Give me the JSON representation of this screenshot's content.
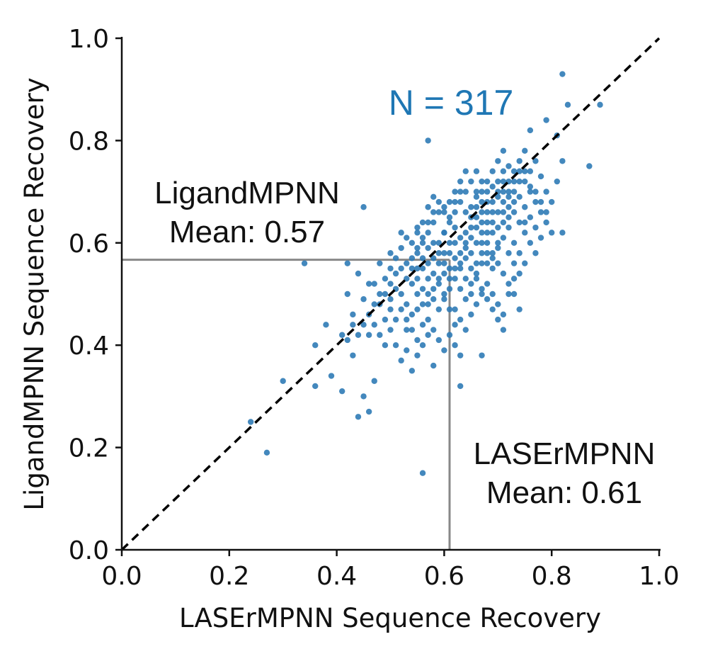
{
  "chart_data": {
    "type": "scatter",
    "xlabel": "LASErMPNN Sequence Recovery",
    "ylabel": "LigandMPNN Sequence Recovery",
    "xlim": [
      0,
      1
    ],
    "ylim": [
      0,
      1
    ],
    "x_ticks": [
      "0.0",
      "0.2",
      "0.4",
      "0.6",
      "0.8",
      "1.0"
    ],
    "y_ticks": [
      "0.0",
      "0.2",
      "0.4",
      "0.6",
      "0.8",
      "1.0"
    ],
    "grid": false,
    "point_color": "#2f7bb6",
    "n_label": "N = 317",
    "n_label_color": "#1f77b4",
    "diagonal": {
      "style": "dashed",
      "color": "#000000",
      "from": [
        0,
        0
      ],
      "to": [
        1,
        1
      ]
    },
    "ref_lines_color": "#888888",
    "ligand_mean": {
      "value": 0.567,
      "label_line1": "LigandMPNN",
      "label_line2": "Mean: 0.57"
    },
    "laser_mean": {
      "value": 0.61,
      "label_line1": "LASErMPNN",
      "label_line2": "Mean: 0.61"
    },
    "points": [
      [
        0.24,
        0.25
      ],
      [
        0.27,
        0.19
      ],
      [
        0.3,
        0.33
      ],
      [
        0.34,
        0.56
      ],
      [
        0.36,
        0.4
      ],
      [
        0.36,
        0.32
      ],
      [
        0.38,
        0.44
      ],
      [
        0.39,
        0.34
      ],
      [
        0.41,
        0.31
      ],
      [
        0.42,
        0.56
      ],
      [
        0.42,
        0.5
      ],
      [
        0.43,
        0.46
      ],
      [
        0.43,
        0.38
      ],
      [
        0.44,
        0.26
      ],
      [
        0.45,
        0.67
      ],
      [
        0.45,
        0.3
      ],
      [
        0.46,
        0.27
      ],
      [
        0.46,
        0.52
      ],
      [
        0.47,
        0.33
      ],
      [
        0.47,
        0.48
      ],
      [
        0.56,
        0.15
      ],
      [
        0.57,
        0.8
      ],
      [
        0.82,
        0.93
      ],
      [
        0.83,
        0.87
      ],
      [
        0.89,
        0.87
      ],
      [
        0.87,
        0.75
      ],
      [
        0.82,
        0.62
      ],
      [
        0.81,
        0.81
      ],
      [
        0.79,
        0.84
      ],
      [
        0.76,
        0.82
      ],
      [
        0.63,
        0.32
      ],
      [
        0.67,
        0.38
      ],
      [
        0.71,
        0.43
      ],
      [
        0.58,
        0.36
      ],
      [
        0.44,
        0.54
      ],
      [
        0.48,
        0.56
      ],
      [
        0.5,
        0.58
      ],
      [
        0.52,
        0.62
      ],
      [
        0.55,
        0.63
      ],
      [
        0.57,
        0.62
      ],
      [
        0.49,
        0.45
      ],
      [
        0.5,
        0.47
      ],
      [
        0.51,
        0.4
      ],
      [
        0.53,
        0.43
      ],
      [
        0.54,
        0.46
      ],
      [
        0.55,
        0.41
      ],
      [
        0.56,
        0.44
      ],
      [
        0.57,
        0.48
      ],
      [
        0.58,
        0.51
      ],
      [
        0.59,
        0.53
      ],
      [
        0.6,
        0.54
      ],
      [
        0.61,
        0.58
      ],
      [
        0.62,
        0.6
      ],
      [
        0.63,
        0.56
      ],
      [
        0.64,
        0.59
      ],
      [
        0.65,
        0.61
      ],
      [
        0.66,
        0.63
      ],
      [
        0.67,
        0.6
      ],
      [
        0.68,
        0.62
      ],
      [
        0.69,
        0.64
      ],
      [
        0.7,
        0.66
      ],
      [
        0.71,
        0.68
      ],
      [
        0.72,
        0.65
      ],
      [
        0.73,
        0.7
      ],
      [
        0.74,
        0.72
      ],
      [
        0.75,
        0.74
      ],
      [
        0.76,
        0.71
      ],
      [
        0.77,
        0.76
      ],
      [
        0.78,
        0.73
      ],
      [
        0.79,
        0.7
      ],
      [
        0.6,
        0.62
      ],
      [
        0.61,
        0.64
      ],
      [
        0.62,
        0.66
      ],
      [
        0.63,
        0.68
      ],
      [
        0.64,
        0.7
      ],
      [
        0.65,
        0.67
      ],
      [
        0.66,
        0.69
      ],
      [
        0.67,
        0.72
      ],
      [
        0.68,
        0.7
      ],
      [
        0.69,
        0.74
      ],
      [
        0.7,
        0.76
      ],
      [
        0.71,
        0.78
      ],
      [
        0.72,
        0.75
      ],
      [
        0.73,
        0.72
      ],
      [
        0.74,
        0.69
      ],
      [
        0.75,
        0.67
      ],
      [
        0.76,
        0.65
      ],
      [
        0.77,
        0.63
      ],
      [
        0.78,
        0.61
      ],
      [
        0.79,
        0.66
      ],
      [
        0.8,
        0.68
      ],
      [
        0.81,
        0.72
      ],
      [
        0.82,
        0.76
      ],
      [
        0.55,
        0.55
      ],
      [
        0.56,
        0.57
      ],
      [
        0.57,
        0.59
      ],
      [
        0.58,
        0.6
      ],
      [
        0.59,
        0.56
      ],
      [
        0.6,
        0.58
      ],
      [
        0.61,
        0.55
      ],
      [
        0.62,
        0.53
      ],
      [
        0.63,
        0.51
      ],
      [
        0.64,
        0.49
      ],
      [
        0.65,
        0.52
      ],
      [
        0.66,
        0.54
      ],
      [
        0.67,
        0.56
      ],
      [
        0.68,
        0.58
      ],
      [
        0.69,
        0.57
      ],
      [
        0.7,
        0.59
      ],
      [
        0.71,
        0.61
      ],
      [
        0.72,
        0.63
      ],
      [
        0.73,
        0.6
      ],
      [
        0.74,
        0.58
      ],
      [
        0.75,
        0.62
      ],
      [
        0.76,
        0.6
      ],
      [
        0.77,
        0.58
      ],
      [
        0.5,
        0.52
      ],
      [
        0.51,
        0.54
      ],
      [
        0.52,
        0.5
      ],
      [
        0.53,
        0.48
      ],
      [
        0.54,
        0.52
      ],
      [
        0.55,
        0.5
      ],
      [
        0.56,
        0.48
      ],
      [
        0.57,
        0.45
      ],
      [
        0.58,
        0.43
      ],
      [
        0.59,
        0.47
      ],
      [
        0.6,
        0.49
      ],
      [
        0.61,
        0.51
      ],
      [
        0.62,
        0.47
      ],
      [
        0.63,
        0.45
      ],
      [
        0.64,
        0.43
      ],
      [
        0.65,
        0.46
      ],
      [
        0.66,
        0.48
      ],
      [
        0.67,
        0.5
      ],
      [
        0.68,
        0.52
      ],
      [
        0.69,
        0.5
      ],
      [
        0.7,
        0.48
      ],
      [
        0.71,
        0.46
      ],
      [
        0.72,
        0.5
      ],
      [
        0.73,
        0.53
      ],
      [
        0.74,
        0.47
      ],
      [
        0.48,
        0.5
      ],
      [
        0.49,
        0.53
      ],
      [
        0.5,
        0.55
      ],
      [
        0.51,
        0.57
      ],
      [
        0.52,
        0.59
      ],
      [
        0.53,
        0.61
      ],
      [
        0.54,
        0.6
      ],
      [
        0.55,
        0.58
      ],
      [
        0.56,
        0.6
      ],
      [
        0.57,
        0.56
      ],
      [
        0.58,
        0.54
      ],
      [
        0.59,
        0.52
      ],
      [
        0.6,
        0.5
      ],
      [
        0.61,
        0.47
      ],
      [
        0.62,
        0.44
      ],
      [
        0.47,
        0.44
      ],
      [
        0.48,
        0.42
      ],
      [
        0.49,
        0.4
      ],
      [
        0.5,
        0.43
      ],
      [
        0.51,
        0.45
      ],
      [
        0.52,
        0.47
      ],
      [
        0.53,
        0.45
      ],
      [
        0.54,
        0.43
      ],
      [
        0.55,
        0.47
      ],
      [
        0.56,
        0.51
      ],
      [
        0.57,
        0.53
      ],
      [
        0.58,
        0.49
      ],
      [
        0.59,
        0.41
      ],
      [
        0.6,
        0.39
      ],
      [
        0.61,
        0.42
      ],
      [
        0.62,
        0.4
      ],
      [
        0.63,
        0.38
      ],
      [
        0.44,
        0.42
      ],
      [
        0.45,
        0.44
      ],
      [
        0.46,
        0.46
      ],
      [
        0.47,
        0.52
      ],
      [
        0.48,
        0.48
      ],
      [
        0.49,
        0.5
      ],
      [
        0.46,
        0.42
      ],
      [
        0.45,
        0.49
      ],
      [
        0.43,
        0.44
      ],
      [
        0.42,
        0.41
      ],
      [
        0.41,
        0.42
      ],
      [
        0.52,
        0.37
      ],
      [
        0.53,
        0.39
      ],
      [
        0.54,
        0.35
      ],
      [
        0.55,
        0.38
      ],
      [
        0.56,
        0.4
      ],
      [
        0.57,
        0.42
      ],
      [
        0.66,
        0.74
      ],
      [
        0.67,
        0.7
      ],
      [
        0.68,
        0.68
      ],
      [
        0.69,
        0.66
      ],
      [
        0.7,
        0.72
      ],
      [
        0.71,
        0.74
      ],
      [
        0.72,
        0.7
      ],
      [
        0.73,
        0.68
      ],
      [
        0.74,
        0.76
      ],
      [
        0.75,
        0.78
      ],
      [
        0.64,
        0.66
      ],
      [
        0.65,
        0.65
      ],
      [
        0.66,
        0.67
      ],
      [
        0.67,
        0.66
      ],
      [
        0.68,
        0.64
      ],
      [
        0.69,
        0.62
      ],
      [
        0.7,
        0.6
      ],
      [
        0.71,
        0.64
      ],
      [
        0.72,
        0.58
      ],
      [
        0.73,
        0.56
      ],
      [
        0.74,
        0.54
      ],
      [
        0.75,
        0.56
      ],
      [
        0.76,
        0.74
      ],
      [
        0.77,
        0.7
      ],
      [
        0.78,
        0.68
      ],
      [
        0.62,
        0.68
      ],
      [
        0.63,
        0.7
      ],
      [
        0.64,
        0.62
      ],
      [
        0.65,
        0.58
      ],
      [
        0.66,
        0.56
      ],
      [
        0.67,
        0.58
      ],
      [
        0.68,
        0.6
      ],
      [
        0.69,
        0.58
      ],
      [
        0.7,
        0.56
      ],
      [
        0.71,
        0.54
      ],
      [
        0.72,
        0.52
      ],
      [
        0.73,
        0.5
      ],
      [
        0.58,
        0.64
      ],
      [
        0.59,
        0.66
      ],
      [
        0.6,
        0.67
      ],
      [
        0.61,
        0.65
      ],
      [
        0.62,
        0.63
      ],
      [
        0.63,
        0.61
      ],
      [
        0.64,
        0.57
      ],
      [
        0.65,
        0.55
      ],
      [
        0.66,
        0.53
      ],
      [
        0.67,
        0.51
      ],
      [
        0.68,
        0.49
      ],
      [
        0.69,
        0.47
      ],
      [
        0.7,
        0.45
      ],
      [
        0.53,
        0.56
      ],
      [
        0.54,
        0.57
      ],
      [
        0.55,
        0.59
      ],
      [
        0.56,
        0.61
      ],
      [
        0.57,
        0.64
      ],
      [
        0.58,
        0.66
      ],
      [
        0.59,
        0.6
      ],
      [
        0.6,
        0.62
      ],
      [
        0.61,
        0.6
      ],
      [
        0.62,
        0.57
      ],
      [
        0.63,
        0.55
      ],
      [
        0.64,
        0.53
      ],
      [
        0.65,
        0.5
      ],
      [
        0.66,
        0.6
      ],
      [
        0.67,
        0.62
      ],
      [
        0.68,
        0.56
      ],
      [
        0.69,
        0.55
      ],
      [
        0.7,
        0.63
      ],
      [
        0.71,
        0.66
      ],
      [
        0.72,
        0.67
      ],
      [
        0.5,
        0.49
      ],
      [
        0.51,
        0.51
      ],
      [
        0.52,
        0.55
      ],
      [
        0.53,
        0.53
      ],
      [
        0.54,
        0.55
      ],
      [
        0.55,
        0.53
      ],
      [
        0.56,
        0.55
      ],
      [
        0.57,
        0.5
      ],
      [
        0.58,
        0.57
      ],
      [
        0.59,
        0.58
      ],
      [
        0.6,
        0.56
      ],
      [
        0.61,
        0.53
      ],
      [
        0.62,
        0.55
      ],
      [
        0.63,
        0.58
      ],
      [
        0.64,
        0.6
      ],
      [
        0.65,
        0.63
      ],
      [
        0.66,
        0.65
      ],
      [
        0.67,
        0.64
      ],
      [
        0.68,
        0.66
      ],
      [
        0.69,
        0.68
      ],
      [
        0.7,
        0.7
      ],
      [
        0.71,
        0.7
      ],
      [
        0.72,
        0.72
      ],
      [
        0.73,
        0.74
      ],
      [
        0.74,
        0.74
      ],
      [
        0.75,
        0.72
      ],
      [
        0.76,
        0.7
      ],
      [
        0.77,
        0.68
      ],
      [
        0.78,
        0.66
      ],
      [
        0.79,
        0.64
      ],
      [
        0.8,
        0.62
      ],
      [
        0.55,
        0.62
      ],
      [
        0.56,
        0.64
      ],
      [
        0.57,
        0.67
      ],
      [
        0.58,
        0.69
      ],
      [
        0.59,
        0.68
      ],
      [
        0.6,
        0.66
      ],
      [
        0.61,
        0.68
      ],
      [
        0.62,
        0.7
      ],
      [
        0.63,
        0.72
      ],
      [
        0.64,
        0.74
      ],
      [
        0.65,
        0.72
      ],
      [
        0.66,
        0.7
      ],
      [
        0.67,
        0.68
      ],
      [
        0.68,
        0.72
      ],
      [
        0.69,
        0.71
      ],
      [
        0.7,
        0.69
      ],
      [
        0.71,
        0.72
      ],
      [
        0.72,
        0.69
      ],
      [
        0.73,
        0.66
      ],
      [
        0.74,
        0.64
      ],
      [
        0.75,
        0.64
      ]
    ]
  }
}
